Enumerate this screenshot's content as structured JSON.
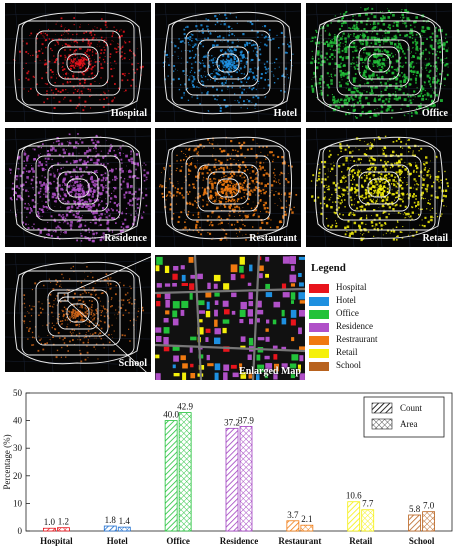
{
  "maps": [
    {
      "label": "Hospital",
      "color": "#e8141c",
      "density": 0.35
    },
    {
      "label": "Hotel",
      "color": "#1e90e0",
      "density": 0.45
    },
    {
      "label": "Office",
      "color": "#22c23a",
      "density": 0.9
    },
    {
      "label": "Residence",
      "color": "#b050c8",
      "density": 0.75
    },
    {
      "label": "Restaurant",
      "color": "#f07a10",
      "density": 0.6
    },
    {
      "label": "Retail",
      "color": "#f5f00a",
      "density": 0.65
    },
    {
      "label": "School",
      "color": "#d0661a",
      "density": 0.3
    }
  ],
  "enlarged_map_label": "Enlarged Map",
  "legend": {
    "title": "Legend",
    "items": [
      {
        "label": "Hospital",
        "color": "#e8141c"
      },
      {
        "label": "Hotel",
        "color": "#1e90e0"
      },
      {
        "label": "Office",
        "color": "#22c23a"
      },
      {
        "label": "Residence",
        "color": "#b050c8"
      },
      {
        "label": "Restraurant",
        "color": "#f07a10"
      },
      {
        "label": "Retail",
        "color": "#f5f00a"
      },
      {
        "label": "School",
        "color": "#b8621e"
      }
    ]
  },
  "chart_data": {
    "type": "bar",
    "categories": [
      "Hospital",
      "Hotel",
      "Office",
      "Residence",
      "Restaurant",
      "Retail",
      "School"
    ],
    "colors": [
      "#e8141c",
      "#1e6fd0",
      "#22c23a",
      "#a040c0",
      "#f07a10",
      "#f5f00a",
      "#b8621e"
    ],
    "series": [
      {
        "name": "Count",
        "pattern": "diag",
        "values": [
          1.0,
          1.8,
          40.0,
          37.2,
          3.7,
          10.6,
          5.8
        ]
      },
      {
        "name": "Area",
        "pattern": "cross",
        "values": [
          1.2,
          1.4,
          42.9,
          37.9,
          2.1,
          7.7,
          7.0
        ]
      }
    ],
    "value_labels": [
      [
        "1.0",
        "1.8",
        "40.0",
        "37.2",
        "3.7",
        "10.6",
        "5.8"
      ],
      [
        "1.2",
        "1.4",
        "42.9",
        "37.9",
        "2.1",
        "7.7",
        "7.0"
      ]
    ],
    "ylabel": "Percentage (%)",
    "ylim": [
      0,
      50
    ],
    "yticks": [
      "0",
      "10",
      "20",
      "30",
      "40",
      "50"
    ],
    "legend_position": "top-right"
  }
}
